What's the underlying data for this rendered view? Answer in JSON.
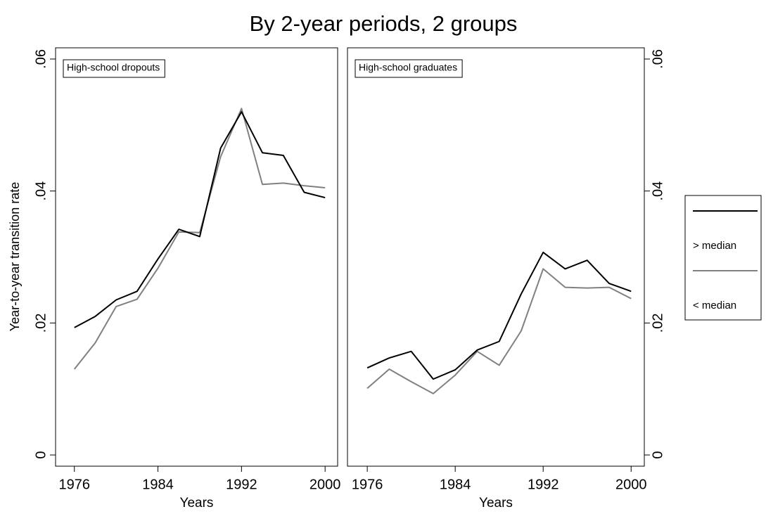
{
  "chart_data": {
    "type": "line",
    "title": "By 2-year periods, 2 groups",
    "ylabel": "Year-to-year transition rate",
    "x": [
      1976,
      1978,
      1980,
      1982,
      1984,
      1986,
      1988,
      1990,
      1992,
      1994,
      1996,
      1998,
      2000
    ],
    "xlim": [
      1974.2,
      2001.2
    ],
    "xticks": [
      1976,
      1984,
      1992,
      2000
    ],
    "ylim": [
      -0.0017,
      0.0617
    ],
    "yticks": [
      0,
      {
        "value": 0.02,
        "label": ".02"
      },
      {
        "value": 0.04,
        "label": ".04"
      },
      {
        "value": 0.06,
        "label": ".06"
      }
    ],
    "series": [
      {
        "name": "> median",
        "color": "#000000"
      },
      {
        "name": "< median",
        "color": "#808080"
      }
    ],
    "panels": [
      {
        "label": "High-school dropouts",
        "xlabel": "Years",
        "y_axis_side": "left",
        "series": [
          {
            "values": [
              0.0193,
              0.021,
              0.0235,
              0.0248,
              0.0297,
              0.0342,
              0.0331,
              0.0465,
              0.052,
              0.0458,
              0.0454,
              0.0398,
              0.039
            ]
          },
          {
            "values": [
              0.013,
              0.017,
              0.0225,
              0.0236,
              0.0283,
              0.0338,
              0.0337,
              0.0452,
              0.0525,
              0.041,
              0.0412,
              0.0408,
              0.0405
            ]
          }
        ]
      },
      {
        "label": "High-school graduates",
        "xlabel": "Years",
        "y_axis_side": "right",
        "series": [
          {
            "values": [
              0.0132,
              0.0147,
              0.0157,
              0.0115,
              0.0129,
              0.0159,
              0.0172,
              0.0244,
              0.0307,
              0.0282,
              0.0295,
              0.026,
              0.0248
            ]
          },
          {
            "values": [
              0.0101,
              0.013,
              0.0111,
              0.0093,
              0.0121,
              0.0157,
              0.0136,
              0.0188,
              0.0282,
              0.0254,
              0.0253,
              0.0254,
              0.0237
            ]
          }
        ]
      }
    ]
  }
}
